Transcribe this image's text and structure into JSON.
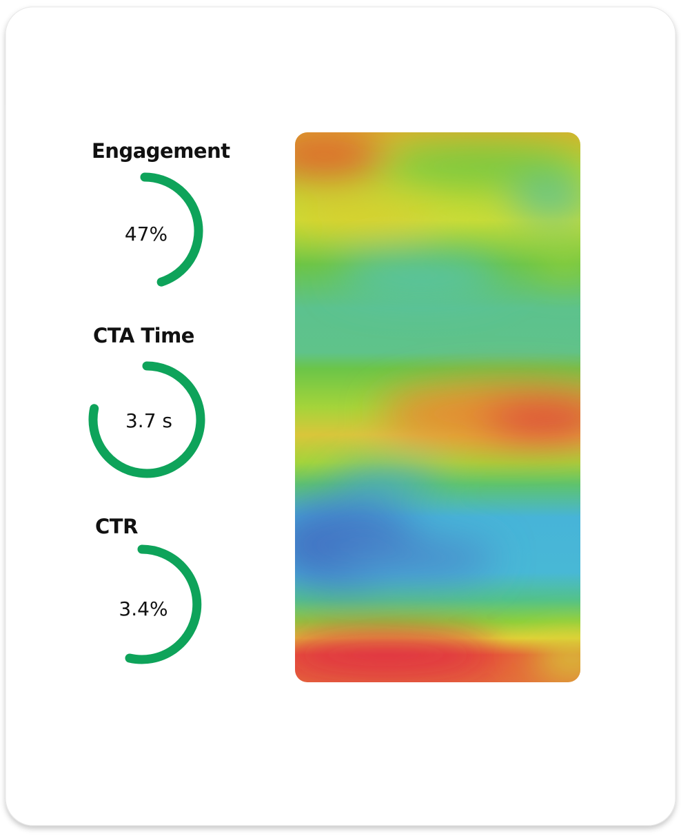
{
  "metrics": [
    {
      "label": "Engagement",
      "value": "47%"
    },
    {
      "label": "CTA Time",
      "value": "3.7 s"
    },
    {
      "label": "CTR",
      "value": "3.4%"
    }
  ]
}
